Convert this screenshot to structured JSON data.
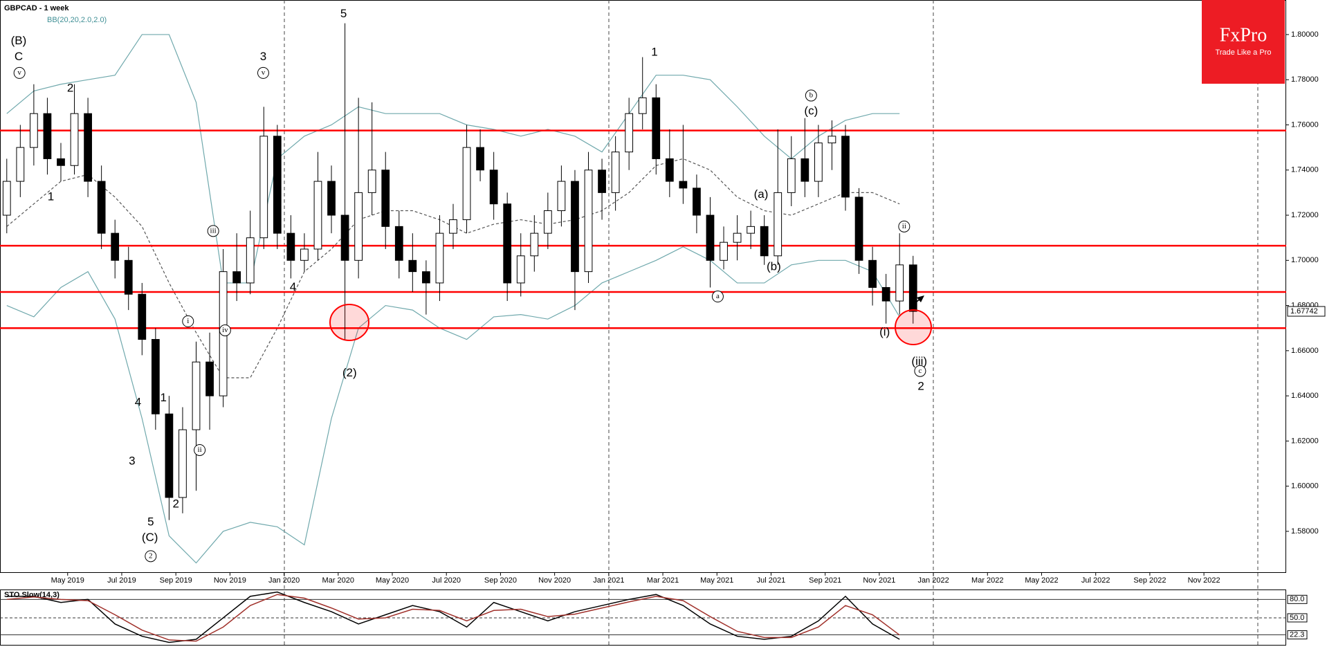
{
  "chart_data": [
    {
      "type": "candlestick",
      "title": "GBPCAD - 1 week",
      "x": [
        1.75,
        2.25,
        2.75,
        3.25,
        3.75,
        4.25,
        4.75,
        5.25,
        5.75,
        6.25,
        6.75,
        7.25,
        7.75,
        8.25,
        8.75,
        9.25,
        9.75,
        10.25,
        10.75,
        11.25,
        11.75,
        12.25,
        12.75,
        13.25,
        13.75,
        14.25,
        14.75,
        15.25,
        15.75,
        16.25,
        16.75,
        17.25,
        17.75,
        18.25,
        18.75,
        19.25,
        19.75,
        20.25,
        20.75,
        21.25,
        21.75,
        22.25,
        22.75,
        23.25,
        23.75,
        24.25,
        24.75,
        25.25,
        25.75,
        26.25,
        26.75,
        27.25,
        27.75,
        28.25,
        28.75,
        29.25,
        29.75,
        30.25,
        30.75,
        31.25,
        31.75,
        32.25,
        32.75,
        33.25,
        33.75,
        34.25,
        34.75,
        35.25
      ],
      "open": [
        1.72,
        1.735,
        1.75,
        1.765,
        1.745,
        1.742,
        1.765,
        1.735,
        1.712,
        1.7,
        1.685,
        1.665,
        1.632,
        1.595,
        1.625,
        1.655,
        1.64,
        1.695,
        1.69,
        1.71,
        1.755,
        1.712,
        1.7,
        1.705,
        1.735,
        1.72,
        1.7,
        1.73,
        1.74,
        1.715,
        1.7,
        1.695,
        1.69,
        1.712,
        1.718,
        1.75,
        1.74,
        1.725,
        1.69,
        1.702,
        1.712,
        1.722,
        1.735,
        1.695,
        1.74,
        1.73,
        1.748,
        1.765,
        1.772,
        1.745,
        1.735,
        1.732,
        1.72,
        1.7,
        1.708,
        1.712,
        1.715,
        1.702,
        1.73,
        1.745,
        1.735,
        1.752,
        1.755,
        1.728,
        1.7,
        1.688,
        1.682,
        1.698
      ],
      "high": [
        1.745,
        1.76,
        1.778,
        1.772,
        1.752,
        1.778,
        1.772,
        1.742,
        1.718,
        1.706,
        1.69,
        1.67,
        1.64,
        1.635,
        1.664,
        1.668,
        1.705,
        1.712,
        1.722,
        1.768,
        1.76,
        1.72,
        1.712,
        1.748,
        1.742,
        1.805,
        1.772,
        1.77,
        1.748,
        1.722,
        1.712,
        1.7,
        1.72,
        1.725,
        1.76,
        1.758,
        1.748,
        1.73,
        1.712,
        1.72,
        1.73,
        1.742,
        1.74,
        1.748,
        1.745,
        1.755,
        1.772,
        1.79,
        1.778,
        1.758,
        1.76,
        1.738,
        1.728,
        1.715,
        1.72,
        1.722,
        1.72,
        1.758,
        1.755,
        1.763,
        1.76,
        1.762,
        1.76,
        1.732,
        1.706,
        1.694,
        1.712,
        1.702
      ],
      "low": [
        1.712,
        1.728,
        1.742,
        1.738,
        1.735,
        1.738,
        1.728,
        1.705,
        1.692,
        1.678,
        1.658,
        1.625,
        1.585,
        1.588,
        1.598,
        1.625,
        1.635,
        1.682,
        1.685,
        1.705,
        1.705,
        1.692,
        1.695,
        1.7,
        1.712,
        1.665,
        1.692,
        1.72,
        1.705,
        1.692,
        1.686,
        1.676,
        1.682,
        1.705,
        1.712,
        1.735,
        1.718,
        1.682,
        1.684,
        1.695,
        1.705,
        1.715,
        1.678,
        1.69,
        1.718,
        1.722,
        1.74,
        1.758,
        1.738,
        1.728,
        1.725,
        1.712,
        1.688,
        1.696,
        1.7,
        1.705,
        1.698,
        1.698,
        1.724,
        1.728,
        1.728,
        1.74,
        1.722,
        1.694,
        1.68,
        1.672,
        1.676,
        1.672
      ],
      "close": [
        1.735,
        1.75,
        1.765,
        1.745,
        1.742,
        1.765,
        1.735,
        1.712,
        1.7,
        1.685,
        1.665,
        1.632,
        1.595,
        1.625,
        1.655,
        1.64,
        1.695,
        1.69,
        1.71,
        1.755,
        1.712,
        1.7,
        1.705,
        1.735,
        1.72,
        1.7,
        1.73,
        1.74,
        1.715,
        1.7,
        1.695,
        1.69,
        1.712,
        1.718,
        1.75,
        1.74,
        1.725,
        1.69,
        1.702,
        1.712,
        1.722,
        1.735,
        1.695,
        1.74,
        1.73,
        1.748,
        1.765,
        1.772,
        1.745,
        1.735,
        1.732,
        1.72,
        1.7,
        1.708,
        1.712,
        1.715,
        1.702,
        1.73,
        1.745,
        1.735,
        1.752,
        1.755,
        1.728,
        1.7,
        1.688,
        1.682,
        1.698,
        1.6774
      ],
      "up_color": "#ffffff",
      "down_color": "#000000",
      "bands": {
        "name": "BB(20,20,2.0,2.0)",
        "color": "#6fa8ac",
        "middle_color": "#555555",
        "x": [
          1.75,
          2.75,
          3.75,
          4.75,
          5.75,
          6.75,
          7.75,
          8.75,
          9.75,
          10.75,
          11.75,
          12.75,
          13.75,
          14.75,
          15.75,
          16.75,
          17.75,
          18.75,
          19.75,
          20.75,
          21.75,
          22.75,
          23.75,
          24.75,
          25.75,
          26.75,
          27.75,
          28.75,
          29.75,
          30.75,
          31.75,
          32.75,
          33.75,
          34.75
        ],
        "upper": [
          1.765,
          1.775,
          1.778,
          1.78,
          1.782,
          1.8,
          1.8,
          1.77,
          1.69,
          1.69,
          1.745,
          1.755,
          1.76,
          1.768,
          1.765,
          1.765,
          1.765,
          1.76,
          1.758,
          1.755,
          1.758,
          1.755,
          1.748,
          1.765,
          1.782,
          1.782,
          1.78,
          1.768,
          1.755,
          1.745,
          1.755,
          1.762,
          1.765,
          1.765
        ],
        "middle": [
          1.715,
          1.725,
          1.735,
          1.738,
          1.728,
          1.715,
          1.69,
          1.668,
          1.648,
          1.648,
          1.67,
          1.695,
          1.705,
          1.718,
          1.722,
          1.722,
          1.718,
          1.712,
          1.716,
          1.718,
          1.716,
          1.718,
          1.722,
          1.73,
          1.742,
          1.745,
          1.74,
          1.728,
          1.722,
          1.72,
          1.725,
          1.73,
          1.73,
          1.725
        ],
        "lower": [
          1.68,
          1.675,
          1.688,
          1.695,
          1.674,
          1.63,
          1.578,
          1.566,
          1.58,
          1.584,
          1.582,
          1.574,
          1.63,
          1.67,
          1.68,
          1.678,
          1.67,
          1.665,
          1.675,
          1.676,
          1.674,
          1.68,
          1.69,
          1.695,
          1.7,
          1.706,
          1.7,
          1.69,
          1.69,
          1.698,
          1.7,
          1.7,
          1.695,
          1.675
        ]
      },
      "levels": {
        "color": "#ff0000",
        "values": [
          1.7575,
          1.7065,
          1.686,
          1.67
        ]
      },
      "last_price": {
        "value": 1.67742,
        "label": "1.67742"
      },
      "xlim": [
        1.5,
        49.04
      ],
      "ylim": [
        1.5616,
        1.8153
      ],
      "xticks": [
        {
          "value": 4,
          "label": "May 2019"
        },
        {
          "value": 6,
          "label": "Jul 2019"
        },
        {
          "value": 8,
          "label": "Sep 2019"
        },
        {
          "value": 10,
          "label": "Nov 2019"
        },
        {
          "value": 12,
          "label": "Jan 2020"
        },
        {
          "value": 14,
          "label": "Mar 2020"
        },
        {
          "value": 16,
          "label": "May 2020"
        },
        {
          "value": 18,
          "label": "Jul 2020"
        },
        {
          "value": 20,
          "label": "Sep 2020"
        },
        {
          "value": 22,
          "label": "Nov 2020"
        },
        {
          "value": 24,
          "label": "Jan 2021"
        },
        {
          "value": 26,
          "label": "Mar 2021"
        },
        {
          "value": 28,
          "label": "May 2021"
        },
        {
          "value": 30,
          "label": "Jul 2021"
        },
        {
          "value": 32,
          "label": "Sep 2021"
        },
        {
          "value": 34,
          "label": "Nov 2021"
        },
        {
          "value": 36,
          "label": "Jan 2022"
        },
        {
          "value": 38,
          "label": "Mar 2022"
        },
        {
          "value": 40,
          "label": "May 2022"
        },
        {
          "value": 42,
          "label": "Jul 2022"
        },
        {
          "value": 44,
          "label": "Sep 2022"
        },
        {
          "value": 46,
          "label": "Nov 2022"
        }
      ],
      "yticks": [
        {
          "value": 1.58,
          "label": "1.58000"
        },
        {
          "value": 1.6,
          "label": "1.60000"
        },
        {
          "value": 1.62,
          "label": "1.62000"
        },
        {
          "value": 1.64,
          "label": "1.64000"
        },
        {
          "value": 1.66,
          "label": "1.66000"
        },
        {
          "value": 1.68,
          "label": "1.68000"
        },
        {
          "value": 1.7,
          "label": "1.70000"
        },
        {
          "value": 1.72,
          "label": "1.72000"
        },
        {
          "value": 1.74,
          "label": "1.74000"
        },
        {
          "value": 1.76,
          "label": "1.76000"
        },
        {
          "value": 1.78,
          "label": "1.78000"
        },
        {
          "value": 1.8,
          "label": "1.80000"
        }
      ],
      "annotations": [
        {
          "text": "(B)",
          "x": 2.19,
          "y": 1.797
        },
        {
          "text": "C",
          "x": 2.19,
          "y": 1.79
        },
        {
          "text": "v",
          "x": 2.22,
          "y": 1.783,
          "circled": true
        },
        {
          "text": "2",
          "x": 4.1,
          "y": 1.776
        },
        {
          "text": "1",
          "x": 3.38,
          "y": 1.728
        },
        {
          "text": "4",
          "x": 6.6,
          "y": 1.637
        },
        {
          "text": "3",
          "x": 6.38,
          "y": 1.611
        },
        {
          "text": "1",
          "x": 7.54,
          "y": 1.639
        },
        {
          "text": "2",
          "x": 8.0,
          "y": 1.592
        },
        {
          "text": "5",
          "x": 7.07,
          "y": 1.584
        },
        {
          "text": "(C)",
          "x": 7.04,
          "y": 1.577
        },
        {
          "text": "2",
          "x": 7.07,
          "y": 1.569,
          "circled": true
        },
        {
          "text": "i",
          "x": 8.45,
          "y": 1.673,
          "circled": true
        },
        {
          "text": "ii",
          "x": 8.88,
          "y": 1.616,
          "circled": true
        },
        {
          "text": "iii",
          "x": 9.38,
          "y": 1.713,
          "circled": true
        },
        {
          "text": "iv",
          "x": 9.82,
          "y": 1.669,
          "circled": true
        },
        {
          "text": "3",
          "x": 11.23,
          "y": 1.79
        },
        {
          "text": "v",
          "x": 11.23,
          "y": 1.783,
          "circled": true
        },
        {
          "text": "4",
          "x": 12.33,
          "y": 1.688
        },
        {
          "text": "5",
          "x": 14.2,
          "y": 1.809
        },
        {
          "text": "(2)",
          "x": 14.42,
          "y": 1.65
        },
        {
          "text": "1",
          "x": 25.69,
          "y": 1.792
        },
        {
          "text": "b",
          "x": 31.48,
          "y": 1.773,
          "circled": true
        },
        {
          "text": "(c)",
          "x": 31.48,
          "y": 1.766
        },
        {
          "text": "(a)",
          "x": 29.63,
          "y": 1.729
        },
        {
          "text": "(b)",
          "x": 30.1,
          "y": 1.697
        },
        {
          "text": "a",
          "x": 28.03,
          "y": 1.684,
          "circled": true
        },
        {
          "text": "ii",
          "x": 34.92,
          "y": 1.715,
          "circled": true
        },
        {
          "text": "(i)",
          "x": 34.2,
          "y": 1.668
        },
        {
          "text": "(iii)",
          "x": 35.48,
          "y": 1.655
        },
        {
          "text": "c",
          "x": 35.51,
          "y": 1.651,
          "circled": true
        },
        {
          "text": "2",
          "x": 35.54,
          "y": 1.644
        }
      ]
    },
    {
      "type": "line",
      "title": "STO Slow(14,3)",
      "x": [
        1.75,
        2.75,
        3.75,
        4.75,
        5.75,
        6.75,
        7.75,
        8.75,
        9.75,
        10.75,
        11.75,
        12.75,
        13.75,
        14.75,
        15.75,
        16.75,
        17.75,
        18.75,
        19.75,
        20.75,
        21.75,
        22.75,
        23.75,
        24.75,
        25.75,
        26.75,
        27.75,
        28.75,
        29.75,
        30.75,
        31.75,
        32.75,
        33.75,
        34.75
      ],
      "series": [
        {
          "color": "#000000",
          "values": [
            85,
            85,
            75,
            80,
            40,
            20,
            10,
            15,
            50,
            85,
            92,
            75,
            60,
            40,
            55,
            70,
            60,
            35,
            75,
            60,
            45,
            60,
            70,
            80,
            88,
            70,
            40,
            20,
            15,
            20,
            45,
            85,
            40,
            15
          ]
        },
        {
          "color": "#a0302a",
          "values": [
            80,
            84,
            80,
            78,
            55,
            30,
            14,
            12,
            35,
            70,
            88,
            82,
            66,
            48,
            50,
            64,
            62,
            45,
            62,
            64,
            52,
            56,
            66,
            76,
            85,
            78,
            52,
            28,
            18,
            18,
            35,
            70,
            55,
            22
          ]
        }
      ],
      "ylim": [
        6,
        95
      ],
      "yticks": [
        {
          "value": 80,
          "label": "80.0"
        },
        {
          "value": 50,
          "label": "50.0"
        }
      ],
      "last_value": {
        "value": 22.3,
        "label": "22.3"
      }
    }
  ],
  "logo": {
    "name": "FxPro",
    "slogan": "Trade Like a Pro"
  }
}
